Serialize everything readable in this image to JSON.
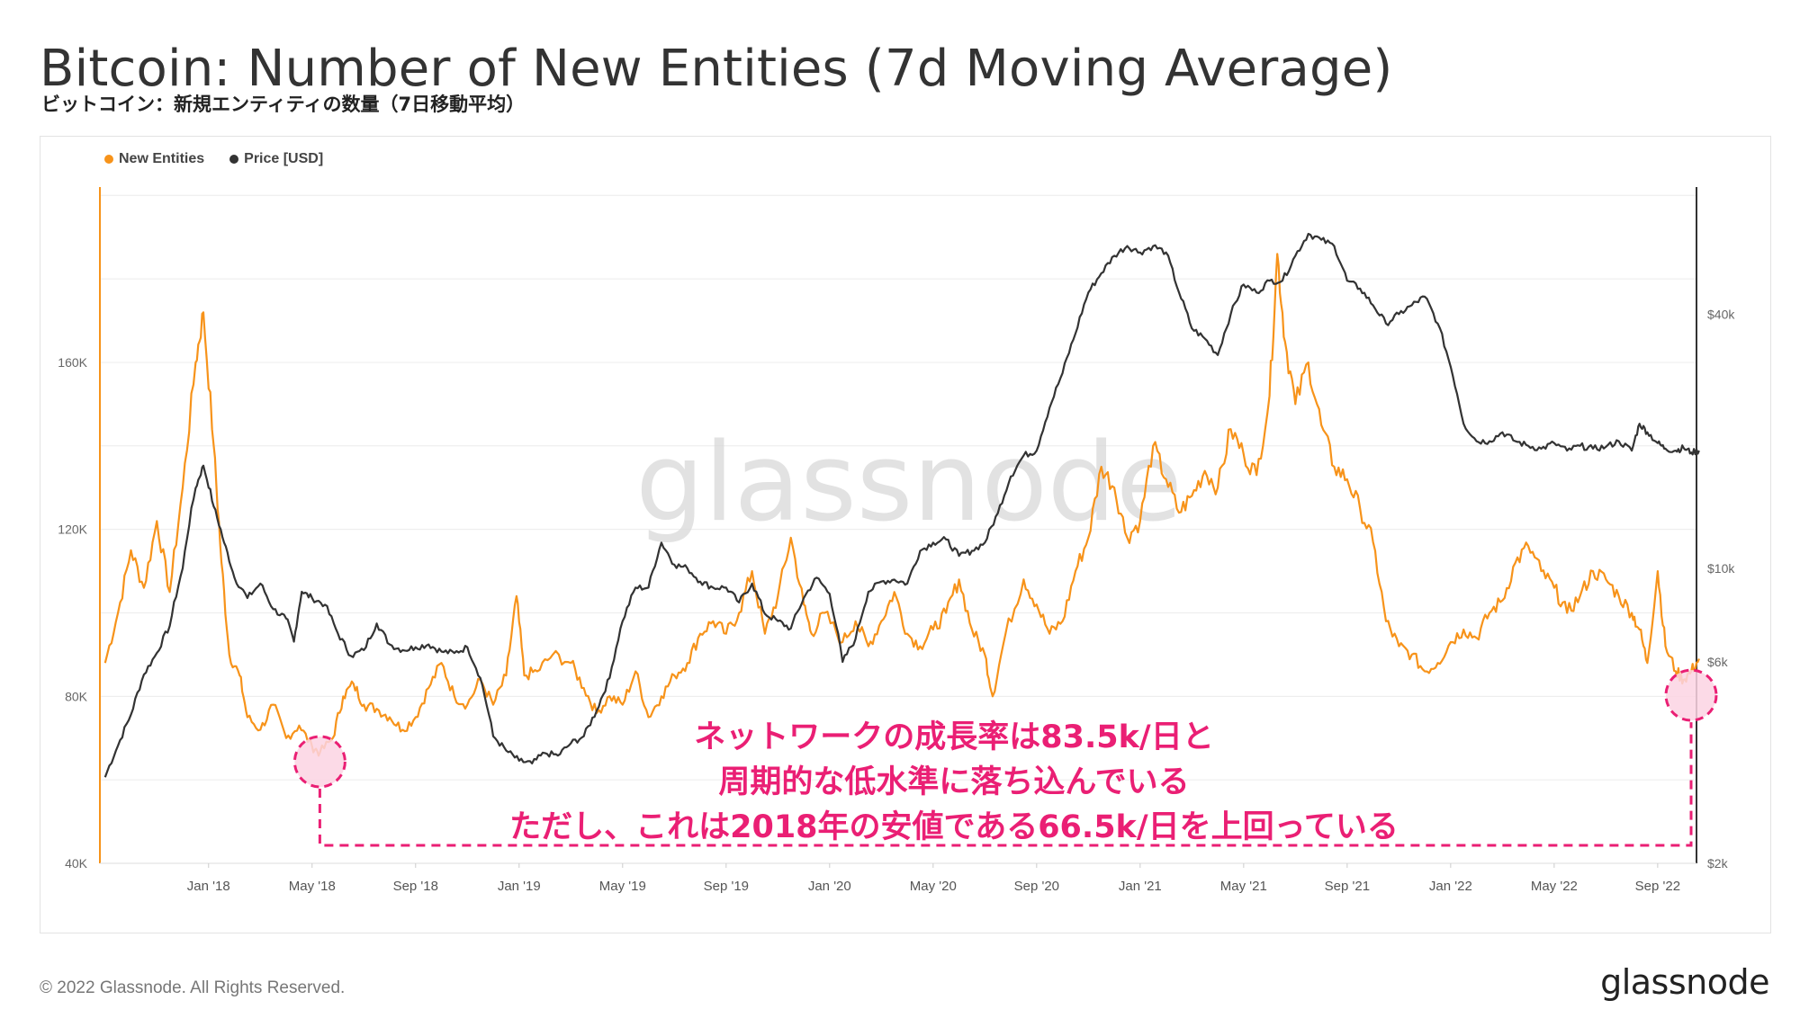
{
  "page": {
    "title": "Bitcoin: Number of New Entities (7d Moving Average)",
    "subtitle": "ビットコイン：新規エンティティの数量（7日移動平均）",
    "copyright": "© 2022 Glassnode. All Rights Reserved.",
    "logo": "glassnode",
    "watermark": "glassnode",
    "annotation": [
      "ネットワークの成長率は83.5k/日と",
      "周期的な低水準に落ち込んでいる",
      "ただし、これは2018年の安値である66.5k/日を上回っている"
    ]
  },
  "colors": {
    "entities": "#f7931a",
    "price": "#333333",
    "annotation": "#ea1f74",
    "highlight_fill": "#fbd3e3",
    "grid": "#ececec"
  },
  "chart_data": {
    "type": "line",
    "legend": [
      "New Entities",
      "Price [USD]"
    ],
    "x_tick_labels": [
      "Jan '18",
      "May '18",
      "Sep '18",
      "Jan '19",
      "May '19",
      "Sep '19",
      "Jan '20",
      "May '20",
      "Sep '20",
      "Jan '21",
      "May '21",
      "Sep '21",
      "Jan '22",
      "May '22",
      "Sep '22"
    ],
    "y_left_ticks": [
      "40K",
      "80K",
      "120K",
      "160K"
    ],
    "y_left_values": [
      40000,
      80000,
      120000,
      160000
    ],
    "y_left_range": [
      40000,
      202000
    ],
    "y_right_ticks": [
      "$2k",
      "$6k",
      "$10k",
      "$40k"
    ],
    "y_right_values": [
      2000,
      6000,
      10000,
      40000
    ],
    "y_right_range": [
      2000,
      80000
    ],
    "x_range_months": [
      -4.2,
      57.5
    ],
    "series": [
      {
        "name": "New Entities",
        "axis": "left",
        "points": [
          [
            -4,
            88000
          ],
          [
            -3.5,
            100000
          ],
          [
            -3,
            115000
          ],
          [
            -2.5,
            106000
          ],
          [
            -2,
            122000
          ],
          [
            -1.5,
            105000
          ],
          [
            -1,
            130000
          ],
          [
            -0.5,
            160000
          ],
          [
            -0.2,
            172000
          ],
          [
            0.2,
            140000
          ],
          [
            0.5,
            112000
          ],
          [
            0.8,
            90000
          ],
          [
            1.2,
            85000
          ],
          [
            1.5,
            75000
          ],
          [
            2,
            72000
          ],
          [
            2.5,
            78000
          ],
          [
            3,
            70000
          ],
          [
            3.5,
            73000
          ],
          [
            4,
            68000
          ],
          [
            4.3,
            66500
          ],
          [
            4.8,
            70000
          ],
          [
            5.2,
            80000
          ],
          [
            5.6,
            83000
          ],
          [
            6,
            78000
          ],
          [
            6.5,
            77000
          ],
          [
            7,
            75000
          ],
          [
            7.5,
            72000
          ],
          [
            8,
            75000
          ],
          [
            8.5,
            82000
          ],
          [
            9,
            88000
          ],
          [
            9.5,
            80000
          ],
          [
            10,
            78000
          ],
          [
            10.5,
            84000
          ],
          [
            11,
            78000
          ],
          [
            11.5,
            85000
          ],
          [
            11.9,
            104000
          ],
          [
            12.2,
            85000
          ],
          [
            12.7,
            86000
          ],
          [
            13.3,
            90000
          ],
          [
            14,
            88000
          ],
          [
            14.5,
            82000
          ],
          [
            15,
            76000
          ],
          [
            15.5,
            80000
          ],
          [
            16,
            78000
          ],
          [
            16.5,
            86000
          ],
          [
            17,
            75000
          ],
          [
            17.5,
            80000
          ],
          [
            18,
            85000
          ],
          [
            18.5,
            88000
          ],
          [
            19,
            95000
          ],
          [
            19.5,
            98000
          ],
          [
            20,
            95000
          ],
          [
            20.5,
            100000
          ],
          [
            21,
            110000
          ],
          [
            21.5,
            95000
          ],
          [
            22,
            104000
          ],
          [
            22.5,
            118000
          ],
          [
            23,
            102000
          ],
          [
            23.3,
            95000
          ],
          [
            23.8,
            100000
          ],
          [
            24.5,
            93000
          ],
          [
            25,
            98000
          ],
          [
            25.5,
            92000
          ],
          [
            26,
            98000
          ],
          [
            26.5,
            105000
          ],
          [
            27,
            95000
          ],
          [
            27.5,
            92000
          ],
          [
            28,
            96000
          ],
          [
            28.5,
            100000
          ],
          [
            29,
            108000
          ],
          [
            29.5,
            96000
          ],
          [
            30,
            90000
          ],
          [
            30.3,
            80000
          ],
          [
            30.8,
            95000
          ],
          [
            31.5,
            108000
          ],
          [
            32,
            102000
          ],
          [
            32.5,
            95000
          ],
          [
            33,
            98000
          ],
          [
            33.5,
            110000
          ],
          [
            34,
            118000
          ],
          [
            34.5,
            135000
          ],
          [
            35,
            130000
          ],
          [
            35.5,
            118000
          ],
          [
            36,
            122000
          ],
          [
            36.5,
            140000
          ],
          [
            37,
            132000
          ],
          [
            37.5,
            124000
          ],
          [
            38,
            128000
          ],
          [
            38.5,
            134000
          ],
          [
            39,
            130000
          ],
          [
            39.5,
            144000
          ],
          [
            40,
            138000
          ],
          [
            40.5,
            133000
          ],
          [
            41,
            152000
          ],
          [
            41.3,
            186000
          ],
          [
            41.6,
            165000
          ],
          [
            42,
            150000
          ],
          [
            42.5,
            160000
          ],
          [
            43,
            145000
          ],
          [
            43.5,
            135000
          ],
          [
            44,
            132000
          ],
          [
            44.5,
            125000
          ],
          [
            45,
            117000
          ],
          [
            45.5,
            98000
          ],
          [
            46,
            92000
          ],
          [
            46.5,
            90000
          ],
          [
            47,
            86000
          ],
          [
            47.5,
            88000
          ],
          [
            48,
            93000
          ],
          [
            48.5,
            96000
          ],
          [
            49,
            94000
          ],
          [
            49.5,
            100000
          ],
          [
            50,
            103000
          ],
          [
            50.5,
            112000
          ],
          [
            51,
            116000
          ],
          [
            51.5,
            110000
          ],
          [
            52,
            106000
          ],
          [
            52.5,
            100000
          ],
          [
            53,
            104000
          ],
          [
            53.5,
            110000
          ],
          [
            54,
            108000
          ],
          [
            54.5,
            104000
          ],
          [
            55,
            100000
          ],
          [
            55.3,
            96000
          ],
          [
            55.6,
            88000
          ],
          [
            56,
            110000
          ],
          [
            56.3,
            92000
          ],
          [
            56.7,
            86000
          ],
          [
            57,
            84000
          ],
          [
            57.3,
            86000
          ],
          [
            57.6,
            89000
          ]
        ]
      },
      {
        "name": "Price [USD]",
        "axis": "right",
        "points": [
          [
            -4,
            3200
          ],
          [
            -3.5,
            3800
          ],
          [
            -3,
            4500
          ],
          [
            -2.5,
            5600
          ],
          [
            -2,
            6300
          ],
          [
            -1.5,
            7300
          ],
          [
            -1,
            10000
          ],
          [
            -0.5,
            15500
          ],
          [
            -0.2,
            17500
          ],
          [
            0.2,
            14000
          ],
          [
            0.6,
            11500
          ],
          [
            1,
            9500
          ],
          [
            1.5,
            8500
          ],
          [
            2,
            9200
          ],
          [
            2.5,
            8000
          ],
          [
            3,
            7600
          ],
          [
            3.3,
            6700
          ],
          [
            3.6,
            8800
          ],
          [
            4,
            8500
          ],
          [
            4.5,
            8200
          ],
          [
            5,
            7000
          ],
          [
            5.5,
            6200
          ],
          [
            6,
            6400
          ],
          [
            6.5,
            7400
          ],
          [
            7,
            6600
          ],
          [
            7.5,
            6400
          ],
          [
            8,
            6500
          ],
          [
            8.5,
            6600
          ],
          [
            9,
            6350
          ],
          [
            9.5,
            6300
          ],
          [
            10,
            6500
          ],
          [
            10.5,
            5500
          ],
          [
            11,
            4000
          ],
          [
            11.5,
            3700
          ],
          [
            12,
            3500
          ],
          [
            12.5,
            3450
          ],
          [
            13,
            3650
          ],
          [
            13.5,
            3600
          ],
          [
            14,
            3850
          ],
          [
            14.5,
            4000
          ],
          [
            15,
            4600
          ],
          [
            15.5,
            5500
          ],
          [
            16,
            7500
          ],
          [
            16.5,
            9000
          ],
          [
            17,
            9000
          ],
          [
            17.5,
            11500
          ],
          [
            18,
            10200
          ],
          [
            18.5,
            10000
          ],
          [
            19,
            9300
          ],
          [
            19.5,
            9000
          ],
          [
            20,
            9000
          ],
          [
            20.5,
            8300
          ],
          [
            21,
            9200
          ],
          [
            21.5,
            7800
          ],
          [
            22,
            7500
          ],
          [
            22.5,
            7200
          ],
          [
            23,
            8500
          ],
          [
            23.5,
            9500
          ],
          [
            24,
            8700
          ],
          [
            24.5,
            6000
          ],
          [
            25,
            6800
          ],
          [
            25.5,
            8800
          ],
          [
            26,
            9300
          ],
          [
            26.5,
            9400
          ],
          [
            27,
            9200
          ],
          [
            27.5,
            11000
          ],
          [
            28,
            11500
          ],
          [
            28.5,
            11700
          ],
          [
            29,
            10700
          ],
          [
            29.5,
            11000
          ],
          [
            30,
            11500
          ],
          [
            30.5,
            13500
          ],
          [
            31,
            16500
          ],
          [
            31.5,
            18500
          ],
          [
            32,
            19000
          ],
          [
            32.5,
            24000
          ],
          [
            33,
            29000
          ],
          [
            33.5,
            36000
          ],
          [
            34,
            45000
          ],
          [
            34.5,
            50000
          ],
          [
            35,
            55000
          ],
          [
            35.5,
            58000
          ],
          [
            36,
            56000
          ],
          [
            36.5,
            58000
          ],
          [
            37,
            56000
          ],
          [
            37.5,
            45000
          ],
          [
            38,
            37000
          ],
          [
            38.5,
            35000
          ],
          [
            39,
            32000
          ],
          [
            39.5,
            40000
          ],
          [
            40,
            47000
          ],
          [
            40.5,
            45000
          ],
          [
            41,
            48000
          ],
          [
            41.5,
            48000
          ],
          [
            42,
            55000
          ],
          [
            42.5,
            62000
          ],
          [
            43,
            60000
          ],
          [
            43.5,
            58000
          ],
          [
            44,
            48000
          ],
          [
            44.5,
            46000
          ],
          [
            45,
            42000
          ],
          [
            45.5,
            38000
          ],
          [
            46,
            40000
          ],
          [
            46.5,
            42000
          ],
          [
            47,
            44000
          ],
          [
            47.5,
            38000
          ],
          [
            48,
            30000
          ],
          [
            48.5,
            22000
          ],
          [
            49,
            20000
          ],
          [
            49.5,
            20000
          ],
          [
            50,
            21000
          ],
          [
            50.5,
            20000
          ],
          [
            51,
            19500
          ],
          [
            51.5,
            19200
          ],
          [
            52,
            19800
          ],
          [
            52.5,
            19000
          ],
          [
            53,
            19500
          ],
          [
            53.5,
            19200
          ],
          [
            54,
            19400
          ],
          [
            54.5,
            20000
          ],
          [
            55,
            19000
          ],
          [
            55.3,
            22000
          ],
          [
            55.6,
            21000
          ],
          [
            56,
            19800
          ],
          [
            56.3,
            19200
          ],
          [
            56.7,
            19000
          ],
          [
            57,
            19300
          ],
          [
            57.3,
            18800
          ],
          [
            57.6,
            19000
          ]
        ]
      }
    ],
    "highlights": [
      {
        "label": "2018 low",
        "x_month": 4.3,
        "y_value": 66500
      },
      {
        "label": "2022 current",
        "x_month": 57.5,
        "y_value": 83500
      }
    ]
  }
}
